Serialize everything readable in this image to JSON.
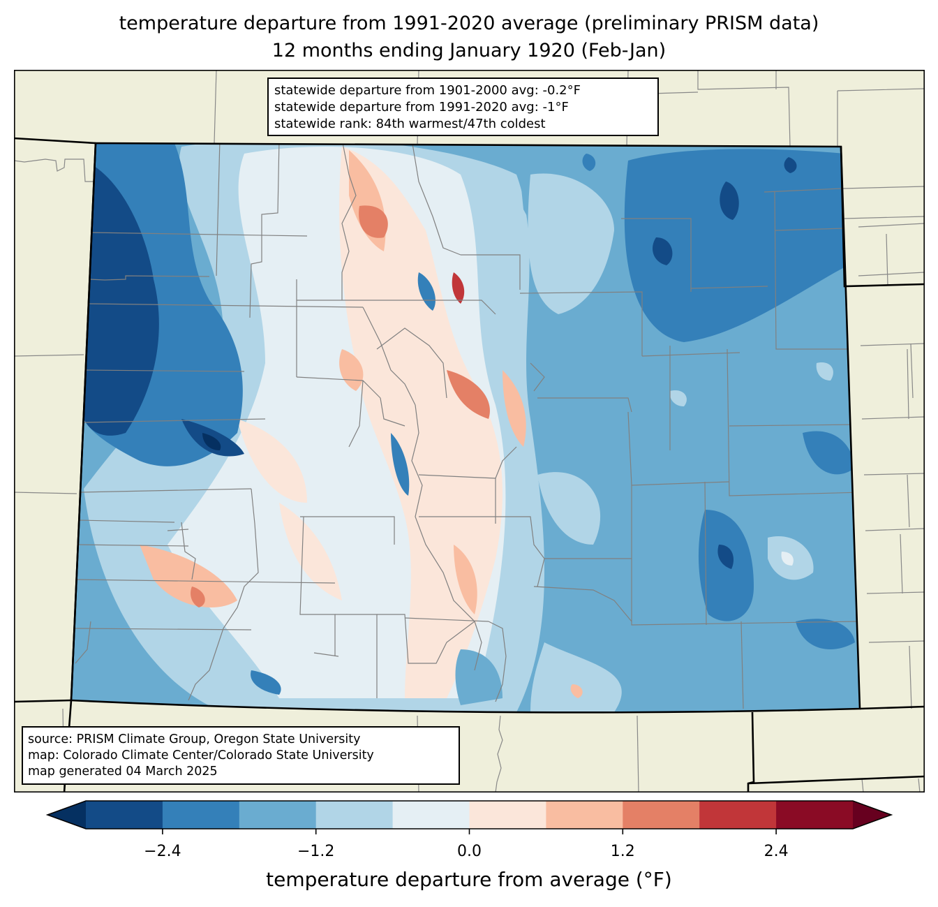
{
  "title": {
    "line1": "temperature departure from 1991-2020 average (preliminary PRISM data)",
    "line2": "12 months ending January 1920 (Feb-Jan)"
  },
  "stats_box": {
    "line1": "statewide departure from 1901-2000 avg: -0.2°F",
    "line2": "statewide departure from 1991-2020 avg: -1°F",
    "line3": "statewide rank: 84th warmest/47th coldest"
  },
  "source_box": {
    "line1": "source: PRISM Climate Group, Oregon State University",
    "line2": "map: Colorado Climate Center/Colorado State University",
    "line3": "map generated 04 March 2025"
  },
  "colorbar": {
    "label": "temperature departure from average (°F)",
    "ticks": [
      "−2.4",
      "−1.2",
      "0.0",
      "1.2",
      "2.4"
    ],
    "tick_values": [
      -2.4,
      -1.2,
      0.0,
      1.2,
      2.4
    ],
    "range": [
      -3.0,
      3.0
    ],
    "bin_width": 0.6,
    "under_color": "#053061",
    "over_color": "#67001f",
    "bin_colors": [
      "#134b87",
      "#3480b9",
      "#6aacd0",
      "#b1d5e7",
      "#e5eff4",
      "#fbe6da",
      "#f9bda1",
      "#e48066",
      "#c13639",
      "#8a0b25"
    ]
  },
  "map_colors": {
    "land": "#efefdb",
    "state_border": "#000000",
    "county_border": "#808080"
  }
}
